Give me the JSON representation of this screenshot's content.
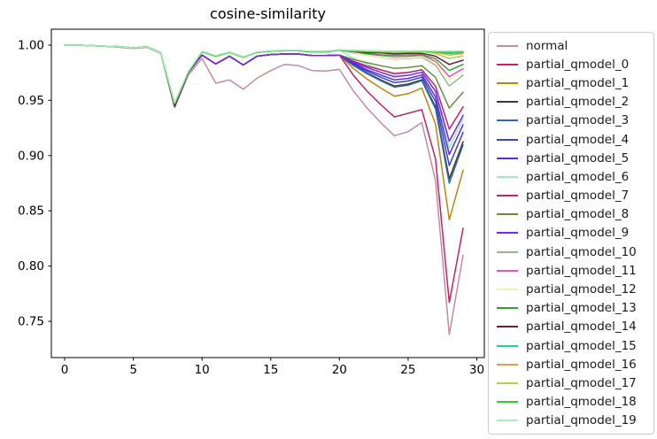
{
  "title": "cosine-similarity",
  "chart_data": {
    "type": "line",
    "title": "cosine-similarity",
    "xlabel": "",
    "ylabel": "",
    "grid": false,
    "legend_position": "right-outside",
    "x": [
      0,
      1,
      2,
      3,
      4,
      5,
      6,
      7,
      8,
      9,
      10,
      11,
      12,
      13,
      14,
      15,
      16,
      17,
      18,
      19,
      20,
      21,
      22,
      23,
      24,
      25,
      26,
      27,
      28,
      29
    ],
    "xlim": [
      -0.97,
      30.55
    ],
    "ylim": [
      0.7172,
      1.0144
    ],
    "x_ticks": [
      0,
      5,
      10,
      15,
      20,
      25,
      30
    ],
    "x_tick_labels": [
      "0",
      "5",
      "10",
      "15",
      "20",
      "25",
      "30"
    ],
    "y_ticks": [
      1.0,
      0.95,
      0.9,
      0.85,
      0.8,
      0.75
    ],
    "y_tick_labels": [
      "1.00",
      "0.95",
      "0.90",
      "0.85",
      "0.80",
      "0.75"
    ],
    "series": [
      {
        "name": "normal",
        "color": "#c48b9f",
        "values": [
          1.0,
          1.0,
          0.9995,
          0.999,
          0.998,
          0.997,
          0.998,
          0.9925,
          0.9435,
          0.973,
          0.988,
          0.9655,
          0.9685,
          0.96,
          0.97,
          0.977,
          0.9825,
          0.9815,
          0.977,
          0.9765,
          0.978,
          0.9588,
          0.9432,
          0.93,
          0.918,
          0.9216,
          0.93,
          0.8772,
          0.738,
          0.81
        ]
      },
      {
        "name": "partial_qmodel_0",
        "color": "#c02366",
        "values": [
          1.0,
          1.0,
          0.9995,
          0.999,
          0.9985,
          0.9975,
          0.9985,
          0.993,
          0.946,
          0.9755,
          0.991,
          0.983,
          0.99,
          0.982,
          0.99,
          0.9915,
          0.992,
          0.992,
          0.9905,
          0.9905,
          0.991,
          0.9731,
          0.9585,
          0.9462,
          0.935,
          0.9383,
          0.9417,
          0.8969,
          0.767,
          0.8342
        ]
      },
      {
        "name": "partial_qmodel_1",
        "color": "#b8860b",
        "values": [
          1.0,
          1.0,
          0.9995,
          0.999,
          0.9985,
          0.9975,
          0.9985,
          0.993,
          0.946,
          0.9755,
          0.991,
          0.983,
          0.99,
          0.982,
          0.99,
          0.9915,
          0.992,
          0.992,
          0.9905,
          0.9905,
          0.991,
          0.9791,
          0.9694,
          0.9612,
          0.9538,
          0.956,
          0.9612,
          0.9284,
          0.842,
          0.8867
        ]
      },
      {
        "name": "partial_qmodel_2",
        "color": "#3d3a28",
        "values": [
          1.0,
          1.0,
          0.9995,
          0.999,
          0.9985,
          0.9975,
          0.9985,
          0.993,
          0.946,
          0.9755,
          0.991,
          0.983,
          0.99,
          0.982,
          0.99,
          0.9915,
          0.992,
          0.992,
          0.9905,
          0.9905,
          0.991,
          0.982,
          0.9748,
          0.9686,
          0.963,
          0.9647,
          0.9686,
          0.944,
          0.879,
          0.9126
        ]
      },
      {
        "name": "partial_qmodel_3",
        "color": "#2d66b3",
        "values": [
          1.0,
          1.0,
          0.9995,
          0.999,
          0.9985,
          0.9975,
          0.9985,
          0.993,
          0.946,
          0.9755,
          0.991,
          0.983,
          0.99,
          0.982,
          0.99,
          0.9915,
          0.992,
          0.992,
          0.9905,
          0.9905,
          0.991,
          0.9817,
          0.9742,
          0.9678,
          0.962,
          0.9637,
          0.9678,
          0.9423,
          0.875,
          0.9098
        ]
      },
      {
        "name": "partial_qmodel_4",
        "color": "#3642cf",
        "values": [
          1.0,
          1.0,
          0.9995,
          0.999,
          0.9985,
          0.9975,
          0.9985,
          0.993,
          0.946,
          0.9755,
          0.991,
          0.983,
          0.99,
          0.982,
          0.99,
          0.9915,
          0.992,
          0.992,
          0.9905,
          0.9905,
          0.991,
          0.983,
          0.9765,
          0.971,
          0.966,
          0.9675,
          0.971,
          0.949,
          0.891,
          0.921
        ]
      },
      {
        "name": "partial_qmodel_5",
        "color": "#5a2be0",
        "values": [
          1.0,
          1.0,
          0.9995,
          0.999,
          0.9985,
          0.9975,
          0.9985,
          0.993,
          0.946,
          0.9755,
          0.991,
          0.983,
          0.99,
          0.982,
          0.99,
          0.9915,
          0.992,
          0.992,
          0.9905,
          0.9905,
          0.991,
          0.9838,
          0.9777,
          0.973,
          0.9685,
          0.9699,
          0.973,
          0.9532,
          0.901,
          0.928
        ]
      },
      {
        "name": "partial_qmodel_6",
        "color": "#93f0bd",
        "values": [
          1.0,
          1.0,
          0.9995,
          0.999,
          0.9985,
          0.9975,
          0.9985,
          0.993,
          0.947,
          0.976,
          0.994,
          0.99,
          0.9935,
          0.989,
          0.9935,
          0.9945,
          0.995,
          0.995,
          0.994,
          0.994,
          0.9955,
          0.9884,
          0.9827,
          0.9778,
          0.9734,
          0.9747,
          0.9778,
          0.9583,
          0.907,
          0.9336
        ]
      },
      {
        "name": "partial_qmodel_7",
        "color": "#c41f75",
        "values": [
          1.0,
          1.0,
          0.9995,
          0.999,
          0.9985,
          0.9975,
          0.9985,
          0.993,
          0.946,
          0.9755,
          0.991,
          0.983,
          0.99,
          0.982,
          0.99,
          0.9915,
          0.992,
          0.992,
          0.9905,
          0.9905,
          0.991,
          0.9856,
          0.9811,
          0.9776,
          0.9743,
          0.9753,
          0.9776,
          0.9629,
          0.924,
          0.9441
        ]
      },
      {
        "name": "partial_qmodel_8",
        "color": "#6d8c3e",
        "values": [
          1.0,
          1.0,
          0.9995,
          0.999,
          0.9985,
          0.9975,
          0.9985,
          0.993,
          0.946,
          0.9755,
          0.991,
          0.983,
          0.99,
          0.982,
          0.99,
          0.9915,
          0.992,
          0.992,
          0.9905,
          0.9905,
          0.991,
          0.9872,
          0.984,
          0.9814,
          0.979,
          0.9797,
          0.9814,
          0.9708,
          0.943,
          0.9574
        ]
      },
      {
        "name": "partial_qmodel_9",
        "color": "#7427ea",
        "values": [
          1.0,
          1.0,
          0.9995,
          0.999,
          0.9985,
          0.9975,
          0.9985,
          0.993,
          0.946,
          0.9755,
          0.991,
          0.983,
          0.99,
          0.982,
          0.99,
          0.9915,
          0.992,
          0.992,
          0.9905,
          0.9905,
          0.991,
          0.9848,
          0.9797,
          0.9754,
          0.9715,
          0.9727,
          0.9754,
          0.9582,
          0.913,
          0.9364
        ]
      },
      {
        "name": "partial_qmodel_10",
        "color": "#9cb292",
        "values": [
          1.0,
          1.0,
          0.9995,
          0.999,
          0.9985,
          0.9975,
          0.9985,
          0.993,
          0.947,
          0.976,
          0.994,
          0.99,
          0.9935,
          0.989,
          0.9935,
          0.9945,
          0.995,
          0.995,
          0.994,
          0.994,
          0.9955,
          0.9929,
          0.9908,
          0.989,
          0.9874,
          0.9879,
          0.989,
          0.9819,
          0.963,
          0.9728
        ]
      },
      {
        "name": "partial_qmodel_11",
        "color": "#ee4fb3",
        "values": [
          1.0,
          1.0,
          0.9995,
          0.999,
          0.9985,
          0.9975,
          0.9985,
          0.993,
          0.947,
          0.976,
          0.994,
          0.99,
          0.9935,
          0.989,
          0.9935,
          0.9945,
          0.995,
          0.995,
          0.994,
          0.994,
          0.9955,
          0.9936,
          0.992,
          0.9907,
          0.9895,
          0.9899,
          0.9907,
          0.9854,
          0.9715,
          0.9787
        ]
      },
      {
        "name": "partial_qmodel_12",
        "color": "#e6f7ae",
        "values": [
          1.0,
          1.0,
          0.9995,
          0.999,
          0.9985,
          0.9975,
          0.9985,
          0.993,
          0.947,
          0.976,
          0.994,
          0.99,
          0.9935,
          0.989,
          0.9935,
          0.9945,
          0.995,
          0.995,
          0.994,
          0.994,
          0.9955,
          0.9933,
          0.9908,
          0.9892,
          0.9877,
          0.9883,
          0.9895,
          0.984,
          0.968,
          0.9763
        ]
      },
      {
        "name": "partial_qmodel_13",
        "color": "#32a135",
        "values": [
          1.0,
          1.0,
          0.9995,
          0.999,
          0.9985,
          0.9975,
          0.9985,
          0.993,
          0.947,
          0.976,
          0.994,
          0.99,
          0.9935,
          0.989,
          0.9935,
          0.9945,
          0.995,
          0.995,
          0.994,
          0.994,
          0.9955,
          0.994,
          0.9924,
          0.9912,
          0.9909,
          0.9912,
          0.9914,
          0.9877,
          0.977,
          0.9826
        ]
      },
      {
        "name": "partial_qmodel_14",
        "color": "#671f3e",
        "values": [
          1.0,
          1.0,
          0.9995,
          0.999,
          0.9985,
          0.9975,
          0.9985,
          0.993,
          0.9445,
          0.975,
          0.994,
          0.99,
          0.9935,
          0.989,
          0.9935,
          0.9945,
          0.995,
          0.995,
          0.994,
          0.994,
          0.9955,
          0.9945,
          0.9933,
          0.9929,
          0.9923,
          0.9925,
          0.9926,
          0.99,
          0.9825,
          0.9864
        ]
      },
      {
        "name": "partial_qmodel_15",
        "color": "#17d981",
        "values": [
          1.0,
          1.0,
          0.9995,
          0.999,
          0.9985,
          0.9975,
          0.9985,
          0.993,
          0.947,
          0.976,
          0.994,
          0.99,
          0.9935,
          0.989,
          0.9935,
          0.9945,
          0.995,
          0.995,
          0.994,
          0.994,
          0.9955,
          0.9952,
          0.9949,
          0.9946,
          0.9944,
          0.9945,
          0.9946,
          0.9942,
          0.9935,
          0.9941
        ]
      },
      {
        "name": "partial_qmodel_16",
        "color": "#e89a57",
        "values": [
          1.0,
          1.0,
          0.9995,
          0.999,
          0.9985,
          0.9975,
          0.9985,
          0.993,
          0.947,
          0.976,
          0.994,
          0.99,
          0.9935,
          0.989,
          0.9935,
          0.9945,
          0.995,
          0.995,
          0.994,
          0.994,
          0.9955,
          0.9951,
          0.9947,
          0.9944,
          0.9942,
          0.9943,
          0.9945,
          0.9936,
          0.991,
          0.9924
        ]
      },
      {
        "name": "partial_qmodel_17",
        "color": "#b2d14b",
        "values": [
          1.0,
          1.0,
          0.9995,
          0.999,
          0.9985,
          0.9975,
          0.9985,
          0.993,
          0.947,
          0.976,
          0.994,
          0.99,
          0.9935,
          0.989,
          0.9935,
          0.9945,
          0.995,
          0.995,
          0.994,
          0.994,
          0.9955,
          0.9948,
          0.9944,
          0.994,
          0.9938,
          0.9939,
          0.9941,
          0.9924,
          0.988,
          0.9903
        ]
      },
      {
        "name": "partial_qmodel_18",
        "color": "#2bd12b",
        "values": [
          1.0,
          1.0,
          0.9995,
          0.999,
          0.9985,
          0.9975,
          0.9985,
          0.993,
          0.947,
          0.976,
          0.994,
          0.99,
          0.9935,
          0.989,
          0.9935,
          0.9945,
          0.995,
          0.995,
          0.994,
          0.994,
          0.9955,
          0.9952,
          0.9948,
          0.9946,
          0.9944,
          0.9945,
          0.9946,
          0.9938,
          0.9925,
          0.9934
        ]
      },
      {
        "name": "partial_qmodel_19",
        "color": "#a6ecc0",
        "values": [
          1.0,
          1.0,
          0.9995,
          0.999,
          0.9985,
          0.9975,
          0.9985,
          0.993,
          0.948,
          0.9765,
          0.9945,
          0.9905,
          0.994,
          0.9895,
          0.994,
          0.995,
          0.9955,
          0.9955,
          0.9945,
          0.9945,
          0.996,
          0.9953,
          0.995,
          0.9948,
          0.9947,
          0.9948,
          0.9949,
          0.9945,
          0.9945,
          0.9948
        ]
      }
    ]
  }
}
